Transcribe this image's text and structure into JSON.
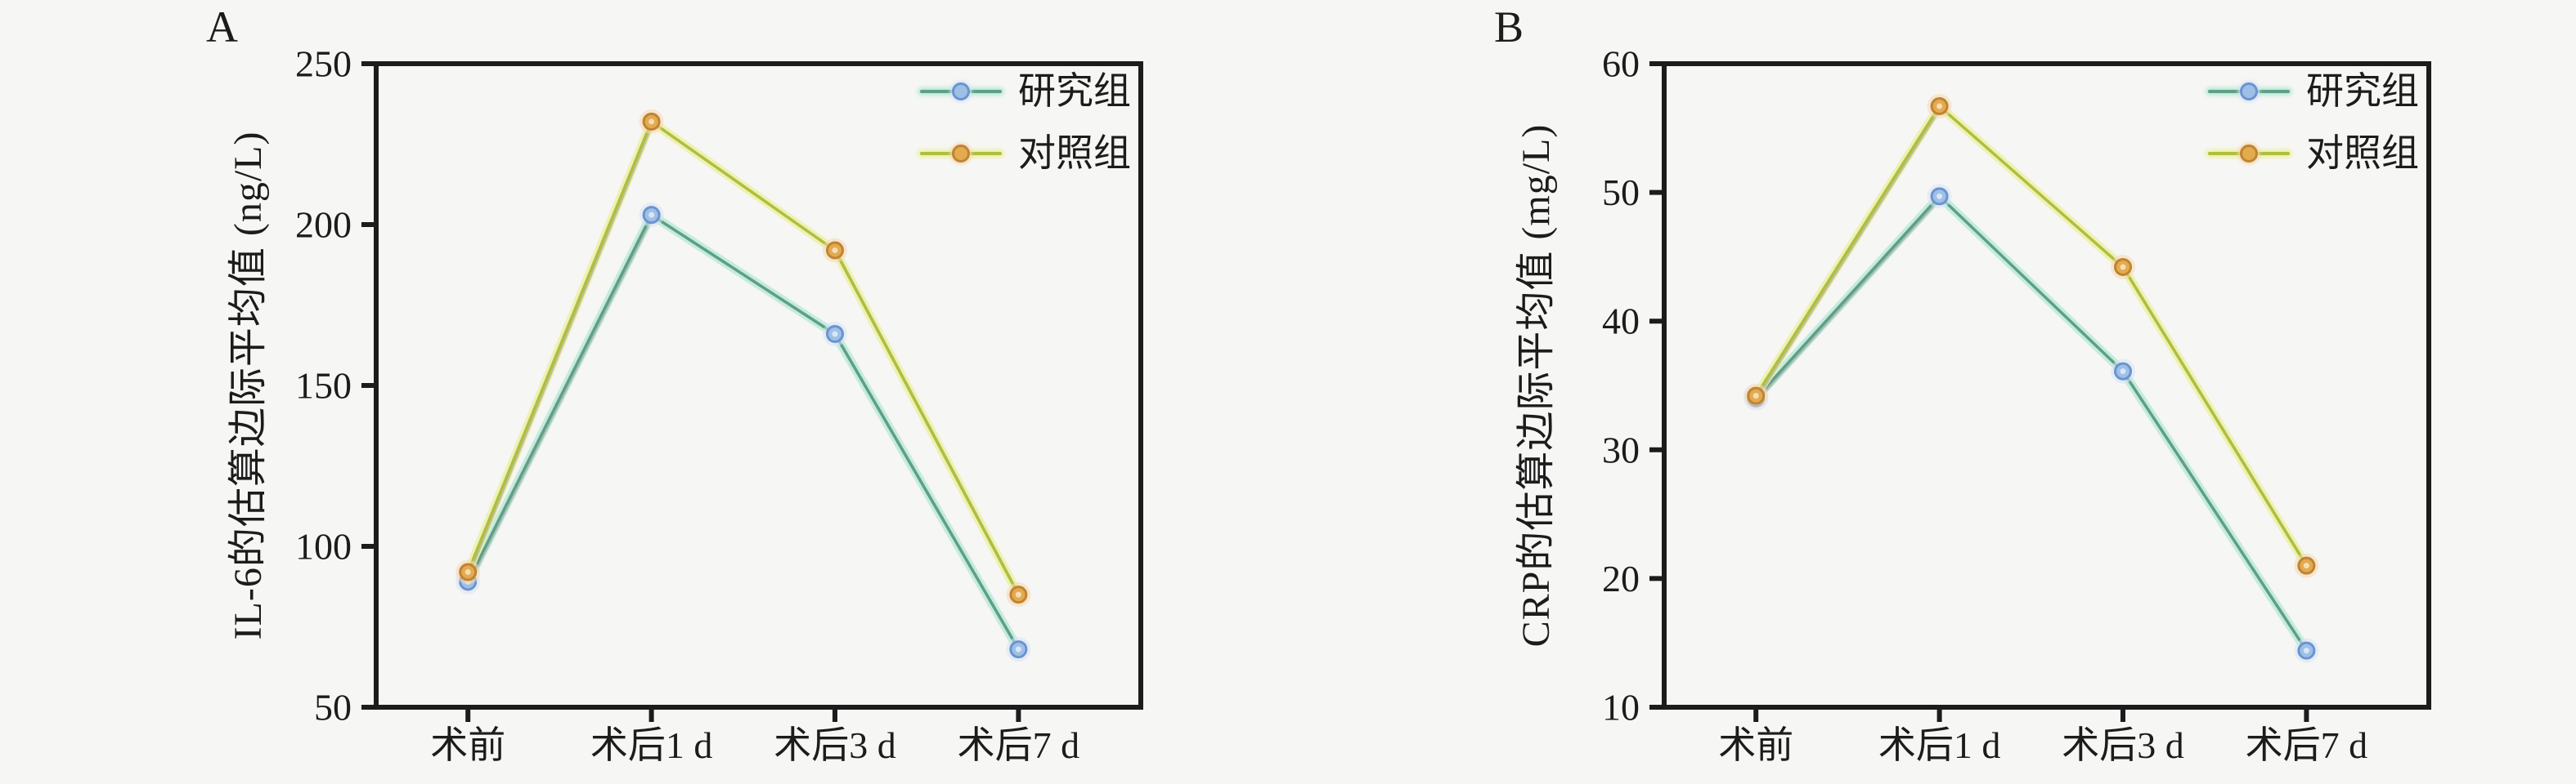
{
  "colors": {
    "background": "#f6f6f4",
    "axis": "#1c1c1c",
    "text": "#1c1c1c",
    "line_shadow": "#999999"
  },
  "chart_data": [
    {
      "panel_label": "A",
      "type": "line",
      "title": "",
      "ylabel": "IL-6的估算边际平均值 (ng/L)",
      "xlabel": "",
      "categories": [
        "术前",
        "术后1 d",
        "术后3 d",
        "术后7 d"
      ],
      "ylim": [
        50,
        250
      ],
      "yticks": [
        50,
        100,
        150,
        200,
        250
      ],
      "grid": false,
      "legend_position": "top-right",
      "series": [
        {
          "name": "研究组",
          "values": [
            89,
            203,
            166,
            68
          ],
          "line_color": "#5f9f85",
          "glow_color": "#b7ead8",
          "marker_fill": "#9fc0e6",
          "marker_stroke": "#6b93cf",
          "marker_glow": "#d5e4f6"
        },
        {
          "name": "对照组",
          "values": [
            92,
            232,
            192,
            85
          ],
          "line_color": "#aebf3e",
          "glow_color": "#eef0a2",
          "marker_fill": "#e4aa4e",
          "marker_stroke": "#bf8433",
          "marker_glow": "#f6d8b2"
        }
      ]
    },
    {
      "panel_label": "B",
      "type": "line",
      "title": "",
      "ylabel": "CRP的估算边际平均值 (mg/L)",
      "xlabel": "",
      "categories": [
        "术前",
        "术后1 d",
        "术后3 d",
        "术后7 d"
      ],
      "ylim": [
        10,
        60
      ],
      "yticks": [
        10,
        20,
        30,
        40,
        50,
        60
      ],
      "grid": false,
      "legend_position": "top-right",
      "series": [
        {
          "name": "研究组",
          "values": [
            34,
            49.7,
            36.1,
            14.4
          ],
          "line_color": "#5f9f85",
          "glow_color": "#b7ead8",
          "marker_fill": "#9fc0e6",
          "marker_stroke": "#6b93cf",
          "marker_glow": "#d5e4f6"
        },
        {
          "name": "对照组",
          "values": [
            34.2,
            56.7,
            44.2,
            21
          ],
          "line_color": "#aebf3e",
          "glow_color": "#eef0a2",
          "marker_fill": "#e4aa4e",
          "marker_stroke": "#bf8433",
          "marker_glow": "#f6d8b2"
        }
      ]
    }
  ]
}
